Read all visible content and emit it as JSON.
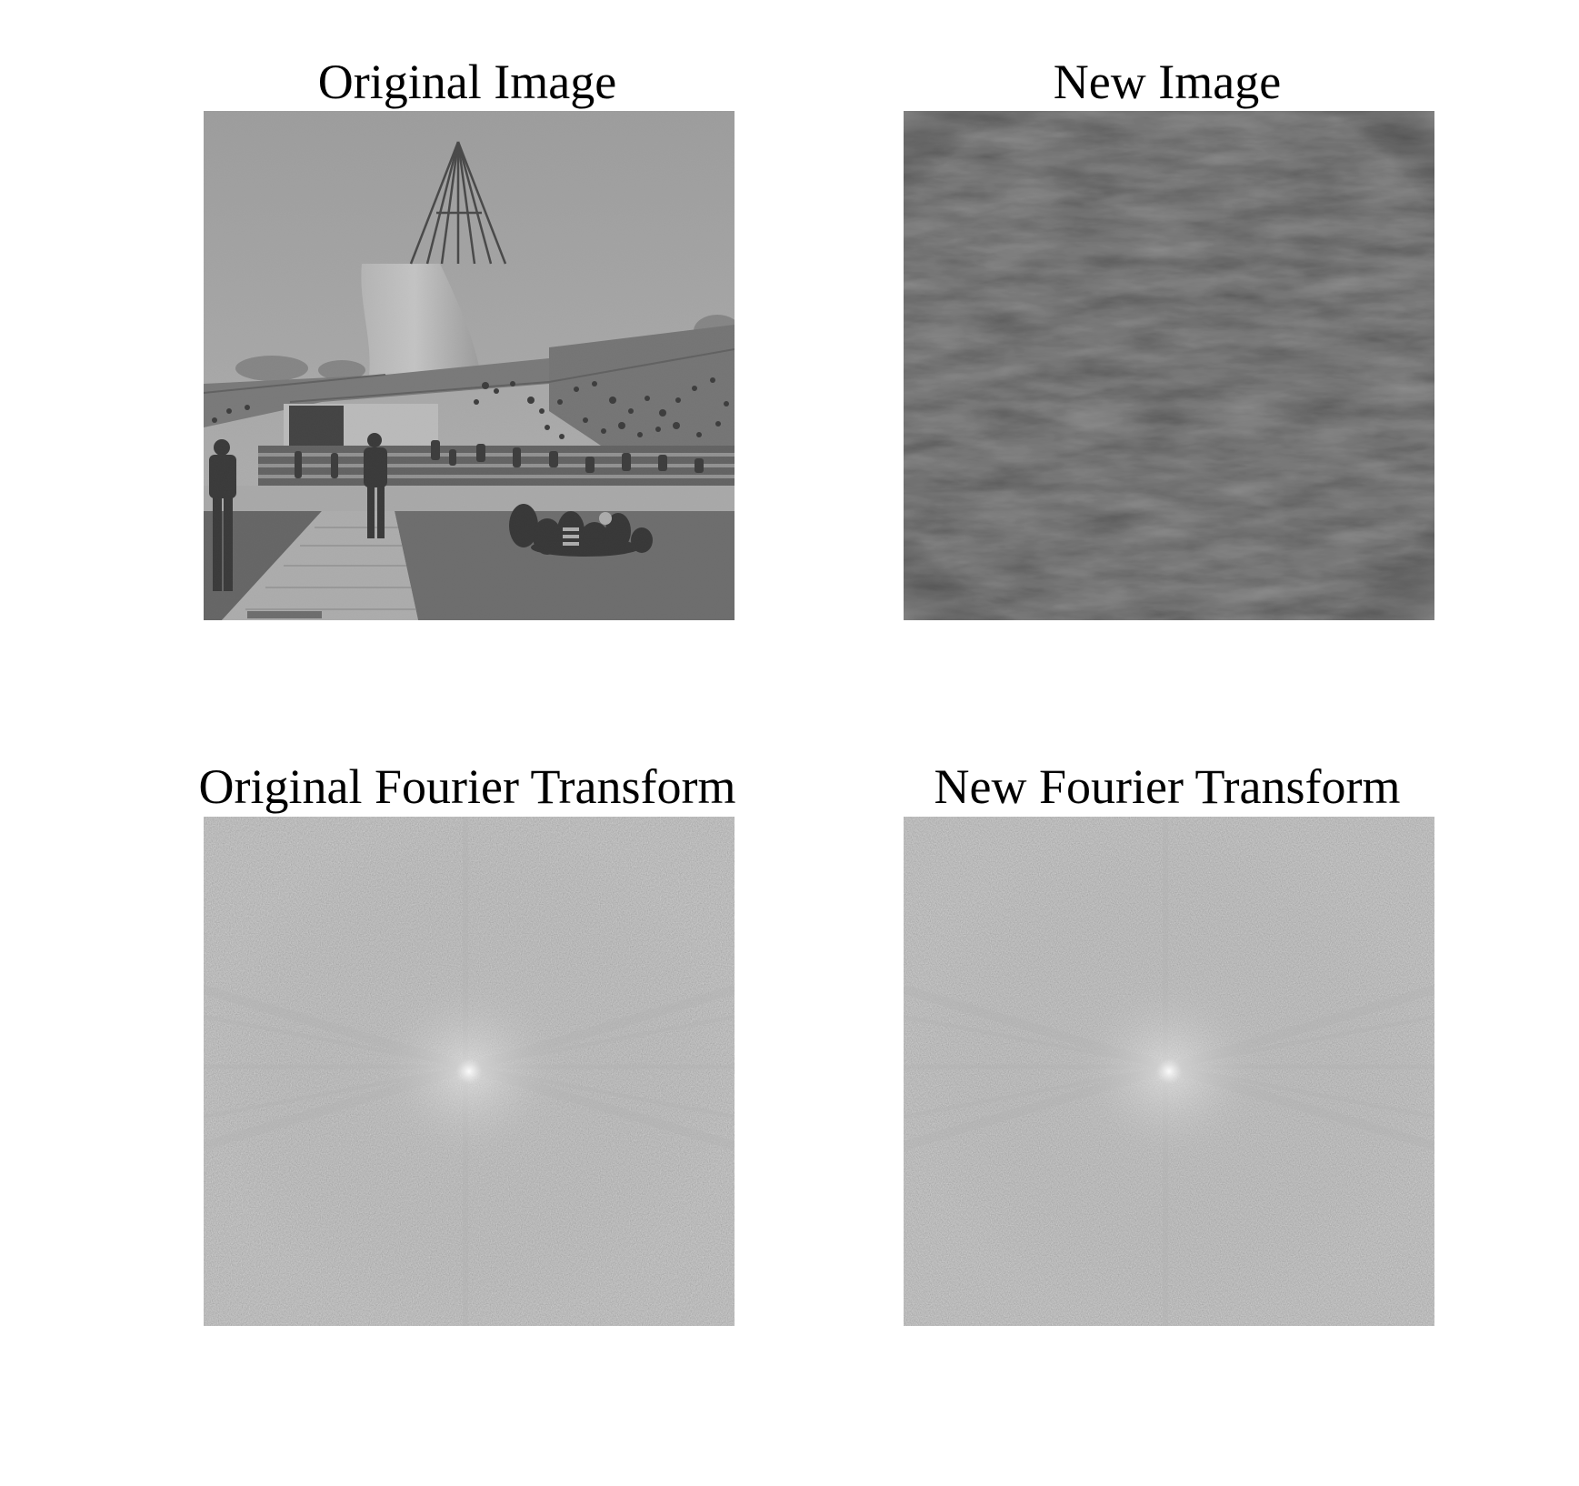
{
  "figure": {
    "panels": [
      {
        "id": "original-image",
        "title": "Original Image",
        "content": "grayscale-photo"
      },
      {
        "id": "new-image",
        "title": "New Image",
        "content": "dark-reconstruction"
      },
      {
        "id": "original-fourier",
        "title": "Original Fourier Transform",
        "content": "fourier-spectrum"
      },
      {
        "id": "new-fourier",
        "title": "New Fourier Transform",
        "content": "fourier-spectrum"
      }
    ]
  },
  "colors": {
    "background": "#ffffff",
    "title_text": "#000000",
    "sky": "#b4b4b4",
    "cone": "#d0d0d0",
    "lawn": "#6a6a6a",
    "dark_image": "#303030",
    "spectrum": "#7d7d7d"
  }
}
